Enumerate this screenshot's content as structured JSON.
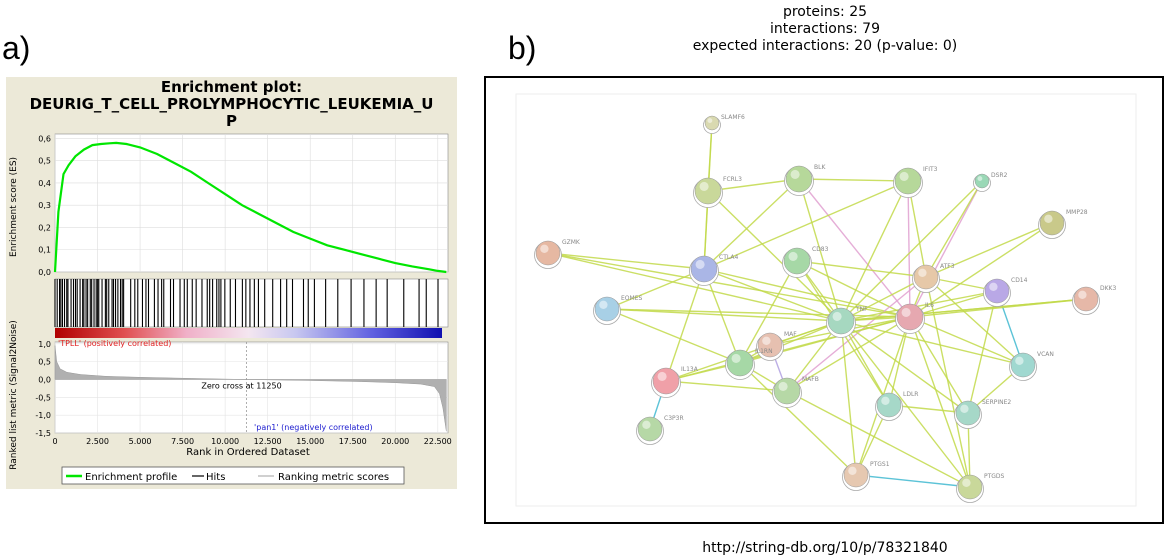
{
  "panel_a_label": "a)",
  "panel_b_label": "b)",
  "gsea": {
    "title_line1": "Enrichment plot:",
    "title_line2": "DEURIG_T_CELL_PROLYMPHOCYTIC_LEUKEMIA_U",
    "title_line3": "P",
    "es_ylabel": "Enrichment score (ES)",
    "rank_ylabel": "Ranked list metric (Signal2Noise)",
    "xlabel": "Rank in Ordered Dataset",
    "pos_label": "'TPLL' (positively correlated)",
    "neg_label": "'pan1' (negatively correlated)",
    "zero_cross": "Zero cross at 11250",
    "legend": {
      "profile": "Enrichment profile",
      "hits": "Hits",
      "metric": "Ranking metric scores"
    },
    "colors": {
      "profile": "#00e600",
      "hits": "#000000",
      "metric": "#b0b0b0",
      "pos": "#e02020",
      "neg": "#2020d0"
    }
  },
  "chart_data": {
    "type": "line",
    "x_ticks": [
      "0",
      "2.500",
      "5.000",
      "7.500",
      "10.000",
      "12.500",
      "15.000",
      "17.500",
      "20.000",
      "22.500"
    ],
    "x_tick_values": [
      0,
      2500,
      5000,
      7500,
      10000,
      12500,
      15000,
      17500,
      20000,
      22500
    ],
    "xlim": [
      0,
      23100
    ],
    "es_ticks": [
      "0,6",
      "0,5",
      "0,4",
      "0,3",
      "0,2",
      "0,1",
      "0,0"
    ],
    "es_tick_values": [
      0.6,
      0.5,
      0.4,
      0.3,
      0.2,
      0.1,
      0.0
    ],
    "es_ylim": [
      0,
      0.62
    ],
    "metric_ticks": [
      "1,0",
      "0,5",
      "0,0",
      "-0,5",
      "-1,0",
      "-1,5"
    ],
    "metric_tick_values": [
      1.0,
      0.5,
      0.0,
      -0.5,
      -1.0,
      -1.5
    ],
    "metric_ylim": [
      -1.5,
      1.05
    ],
    "zero_cross": 11250,
    "es_curve": {
      "x": [
        0,
        200,
        500,
        800,
        1200,
        1700,
        2200,
        2700,
        3200,
        3600,
        4200,
        5000,
        6000,
        7000,
        8000,
        9000,
        10000,
        11000,
        12000,
        13000,
        14000,
        15000,
        16000,
        17000,
        18000,
        19000,
        20000,
        21000,
        22000,
        22500,
        23000
      ],
      "y": [
        0.0,
        0.27,
        0.44,
        0.48,
        0.52,
        0.55,
        0.57,
        0.575,
        0.578,
        0.58,
        0.575,
        0.56,
        0.53,
        0.49,
        0.45,
        0.4,
        0.35,
        0.3,
        0.26,
        0.22,
        0.18,
        0.15,
        0.12,
        0.1,
        0.08,
        0.06,
        0.04,
        0.025,
        0.012,
        0.005,
        0.0
      ]
    },
    "metric_curve": {
      "x": [
        0,
        100,
        300,
        700,
        1500,
        3000,
        5000,
        8000,
        11250,
        15000,
        18000,
        20000,
        21500,
        22300,
        22600,
        22800,
        23000
      ],
      "y": [
        0.95,
        0.5,
        0.3,
        0.2,
        0.14,
        0.09,
        0.06,
        0.03,
        0.0,
        -0.03,
        -0.06,
        -0.09,
        -0.13,
        -0.2,
        -0.4,
        -0.8,
        -1.45
      ]
    }
  },
  "network": {
    "proteins_line": "proteins: 25",
    "interactions_line": "interactions: 79",
    "expected_line": "expected interactions: 20 (p-value: 0)",
    "url": "http://string-db.org/10/p/78321840",
    "nodes": [
      {
        "id": "SLAMF6",
        "color": "#d9d9b0"
      },
      {
        "id": "FCRL3",
        "color": "#c9d89a"
      },
      {
        "id": "BLK",
        "color": "#b6d89a"
      },
      {
        "id": "IFIT3",
        "color": "#b6d89a"
      },
      {
        "id": "DSR2",
        "color": "#9ad8b6"
      },
      {
        "id": "MMP28",
        "color": "#c9c98a"
      },
      {
        "id": "GZMK",
        "color": "#e6b8a2"
      },
      {
        "id": "CTLA4",
        "color": "#aab6e6"
      },
      {
        "id": "CD83",
        "color": "#a6d8a6"
      },
      {
        "id": "ATF3",
        "color": "#e6c8a8"
      },
      {
        "id": "CD14",
        "color": "#b9a8e6"
      },
      {
        "id": "DKK3",
        "color": "#e6b8a8"
      },
      {
        "id": "EOMES",
        "color": "#a8d0e6"
      },
      {
        "id": "TNF",
        "color": "#a6d8c0"
      },
      {
        "id": "IL6",
        "color": "#e6a8b0"
      },
      {
        "id": "MAF",
        "color": "#e6c0b0"
      },
      {
        "id": "IL1RN",
        "color": "#a6d8a6"
      },
      {
        "id": "IL13A",
        "color": "#f0a0a8"
      },
      {
        "id": "MAFB",
        "color": "#b6d8a6"
      },
      {
        "id": "LDLR",
        "color": "#a6d8c8"
      },
      {
        "id": "SERPINE2",
        "color": "#a6d8c8"
      },
      {
        "id": "VCAN",
        "color": "#a0d8d0"
      },
      {
        "id": "C3P3R",
        "color": "#b6d8a6"
      },
      {
        "id": "PTGS1",
        "color": "#e6c8b0"
      },
      {
        "id": "PTGDS",
        "color": "#c9d89a"
      }
    ]
  }
}
